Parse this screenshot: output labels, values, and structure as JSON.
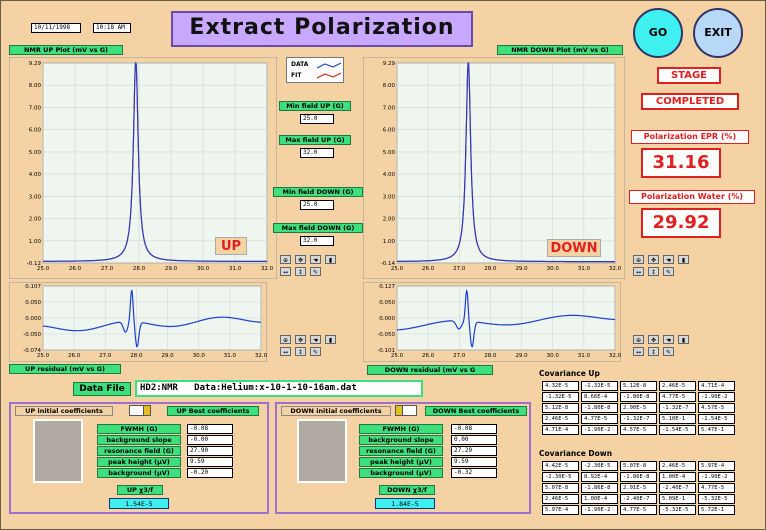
{
  "header": {
    "date": "10/11/1998",
    "time": "10:18 AM",
    "title": "Extract Polarization"
  },
  "buttons": {
    "go": "GO",
    "exit": "EXIT"
  },
  "stage": {
    "label": "STAGE",
    "value": "COMPLETED"
  },
  "polarization": {
    "epr_label": "Polarization EPR (%)",
    "epr_value": "31.16",
    "water_label": "Polarization Water (%)",
    "water_value": "29.92"
  },
  "legend": {
    "data": "DATA",
    "fit": "FIT"
  },
  "plots": {
    "up_title": "NMR UP Plot (mV vs G)",
    "down_title": "NMR DOWN Plot (mV vs G)",
    "up_tag": "UP",
    "down_tag": "DOWN",
    "up_residual_title": "UP residual (mV vs G)",
    "down_residual_title": "DOWN residual (mV vs G",
    "x_ticks": [
      "25.0",
      "26.0",
      "27.0",
      "28.0",
      "29.0",
      "30.0",
      "31.0",
      "32.0"
    ],
    "up_y_ticks": [
      "9.29",
      "8.00",
      "7.00",
      "6.00",
      "5.00",
      "4.00",
      "3.00",
      "2.00",
      "1.00",
      "-0.12"
    ],
    "down_y_ticks": [
      "9.29",
      "8.00",
      "7.00",
      "6.00",
      "5.00",
      "4.00",
      "3.00",
      "2.00",
      "1.00",
      "-0.14"
    ],
    "up_res_ticks": [
      "0.107",
      "0.050",
      "0.000",
      "-0.050",
      "-0.074"
    ],
    "down_res_ticks": [
      "0.127",
      "0.050",
      "0.000",
      "-0.050",
      "-0.101"
    ]
  },
  "fields": {
    "min_up_label": "Min field UP (G)",
    "min_up_value": "25.0",
    "max_up_label": "Max field UP (G)",
    "max_up_value": "32.0",
    "min_down_label": "Min field DOWN (G)",
    "min_down_value": "25.0",
    "max_down_label": "Max field DOWN (G)",
    "max_down_value": "32.0"
  },
  "data_file": {
    "label": "Data File",
    "value": "HD2:NMR   Data:Helium:x-10-1-10-16am.dat"
  },
  "up_coeffs": {
    "initial_label": "UP initial coefficients",
    "best_label": "UP Best coefficients",
    "params": [
      "FWMH (G)",
      "background slope",
      "resonance field (G)",
      "peak height (µV)",
      "background (µV)"
    ],
    "values": [
      "-0.08",
      "-0.00",
      "27.90",
      "9.59",
      "-0.20"
    ],
    "chi_label": "UP χ3/f",
    "chi_value": "1.54E-5"
  },
  "down_coeffs": {
    "initial_label": "DOWN initial coefficients",
    "best_label": "DOWN Best coefficients",
    "params": [
      "FWMH (G)",
      "background slope",
      "resonance field (G)",
      "peak height (µV)",
      "background (µV)"
    ],
    "values": [
      "-0.08",
      "0.00",
      "27.29",
      "9.59",
      "-0.32"
    ],
    "chi_label": "DOWN χ3/f",
    "chi_value": "1.84E-5"
  },
  "covariance_up": {
    "label": "Covariance Up",
    "rows": [
      [
        "4.32E-5",
        "-1.32E-5",
        "5.12E-8",
        "2.46E-5",
        "4.71E-4"
      ],
      [
        "-1.32E-5",
        "8.66E-4",
        "-1.80E-8",
        "4.77E-5",
        "-1.90E-2"
      ],
      [
        "5.12E-8",
        "-1.80E-8",
        "2.00E-5",
        "-1.32E-7",
        "4.57E-5"
      ],
      [
        "2.46E-5",
        "4.77E-5",
        "-1.32E-7",
        "5.10E-1",
        "-1.54E-5"
      ],
      [
        "4.71E-4",
        "-1.90E-2",
        "4.57E-5",
        "-1.54E-5",
        "5.47E-1"
      ]
    ]
  },
  "covariance_down": {
    "label": "Covariance Down",
    "rows": [
      [
        "4.42E-5",
        "-2.30E-5",
        "5.07E-8",
        "2.46E-5",
        "5.97E-4"
      ],
      [
        "-2.30E-5",
        "8.92E-4",
        "-1.86E-8",
        "1.00E-4",
        "-1.90E-2"
      ],
      [
        "5.07E-8",
        "-1.86E-8",
        "2.01E-5",
        "-2.40E-7",
        "4.77E-5"
      ],
      [
        "2.46E-5",
        "1.00E-4",
        "-2.40E-7",
        "5.09E-1",
        "-5.32E-5"
      ],
      [
        "5.97E-4",
        "-1.90E-2",
        "4.77E-5",
        "-5.32E-5",
        "5.72E-1"
      ]
    ]
  },
  "colors": {
    "background": "#f4d2a4",
    "label_green": "#3ee07e",
    "data_line": "#1f3fcf",
    "fit_line": "#d02020",
    "title_purple": "#c8a8ff",
    "alert_red": "#e02020",
    "button_cyan": "#3ef0f0"
  }
}
